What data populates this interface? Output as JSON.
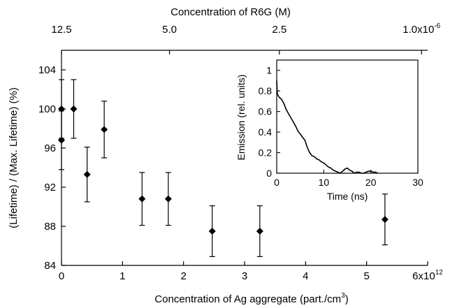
{
  "chart_data": [
    {
      "type": "scatter",
      "title": "",
      "xlabel": "Concentration of Ag aggregate (part./cm",
      "xlabel_sup": "3",
      "xlabel_end": ")",
      "ylabel": "(Lifetime) / (Max. Lifetime) (%)",
      "xlim": [
        0,
        6
      ],
      "ylim": [
        84,
        106
      ],
      "x_ticks": [
        {
          "value": 0,
          "label": "0"
        },
        {
          "value": 1,
          "label": "1"
        },
        {
          "value": 2,
          "label": "2"
        },
        {
          "value": 3,
          "label": "3"
        },
        {
          "value": 4,
          "label": "4"
        },
        {
          "value": 5,
          "label": "5"
        },
        {
          "value": 6,
          "label": "6x10",
          "sup": "12"
        }
      ],
      "y_ticks": [
        {
          "value": 84,
          "label": "84"
        },
        {
          "value": 88,
          "label": "88"
        },
        {
          "value": 92,
          "label": "92"
        },
        {
          "value": 96,
          "label": "96"
        },
        {
          "value": 100,
          "label": "100"
        },
        {
          "value": 104,
          "label": "104"
        }
      ],
      "top_axis": {
        "label": "Concentration of R6G (M)",
        "ticks": [
          {
            "position": 0,
            "label": "12.5"
          },
          {
            "position": 1.77,
            "label": "5.0"
          },
          {
            "position": 3.57,
            "label": "2.5"
          },
          {
            "position": 5.9,
            "label": "1.0x10",
            "sup": "-6"
          }
        ]
      },
      "points": [
        {
          "x": 0.0,
          "y": 100.0,
          "err": 3.0
        },
        {
          "x": 0.0,
          "y": 96.8,
          "err": 3.0
        },
        {
          "x": 0.2,
          "y": 100.0,
          "err": 3.0
        },
        {
          "x": 0.42,
          "y": 93.3,
          "err": 2.8
        },
        {
          "x": 0.7,
          "y": 97.9,
          "err": 2.9
        },
        {
          "x": 1.32,
          "y": 90.8,
          "err": 2.7
        },
        {
          "x": 1.75,
          "y": 90.8,
          "err": 2.7
        },
        {
          "x": 2.47,
          "y": 87.5,
          "err": 2.6
        },
        {
          "x": 3.25,
          "y": 87.5,
          "err": 2.6
        },
        {
          "x": 5.3,
          "y": 88.7,
          "err": 2.6
        }
      ],
      "grid": false,
      "legend": "none"
    },
    {
      "type": "line",
      "title": "",
      "xlabel": "Time (ns)",
      "ylabel": "Emission (rel. units)",
      "xlim": [
        0,
        30
      ],
      "ylim": [
        0,
        1.1
      ],
      "x_ticks": [
        {
          "value": 0,
          "label": "0"
        },
        {
          "value": 10,
          "label": "10"
        },
        {
          "value": 20,
          "label": "20"
        },
        {
          "value": 30,
          "label": "30"
        }
      ],
      "y_ticks": [
        {
          "value": 0,
          "label": "0"
        },
        {
          "value": 0.2,
          "label": "0.2"
        },
        {
          "value": 0.4,
          "label": "0.4"
        },
        {
          "value": 0.6,
          "label": "0.6"
        },
        {
          "value": 0.8,
          "label": "0.8"
        },
        {
          "value": 1,
          "label": "1"
        }
      ],
      "x": [
        0,
        0.1,
        0.25,
        0.5,
        1,
        1.5,
        2,
        2.5,
        3,
        3.5,
        4,
        4.5,
        5,
        5.5,
        6,
        6.5,
        7,
        7.5,
        8,
        8.5,
        9,
        9.5,
        10,
        10.5,
        11,
        11.5,
        12,
        12.5,
        13,
        13.5,
        14,
        14.5,
        15,
        15.5,
        16,
        16.5,
        17,
        17.5,
        18,
        18.5,
        19,
        19.5,
        20,
        20.5,
        21,
        21.5
      ],
      "y": [
        0.9,
        0.78,
        0.76,
        0.74,
        0.72,
        0.68,
        0.62,
        0.58,
        0.54,
        0.5,
        0.46,
        0.41,
        0.38,
        0.35,
        0.32,
        0.25,
        0.2,
        0.17,
        0.16,
        0.14,
        0.13,
        0.11,
        0.1,
        0.08,
        0.06,
        0.05,
        0.03,
        0.02,
        0.01,
        0.0,
        0.02,
        0.04,
        0.05,
        0.03,
        0.02,
        0.0,
        0.01,
        0.01,
        0.0,
        0.0,
        0.01,
        0.02,
        0.02,
        0.01,
        0.01,
        0.0
      ],
      "grid": false,
      "legend": "none"
    }
  ]
}
